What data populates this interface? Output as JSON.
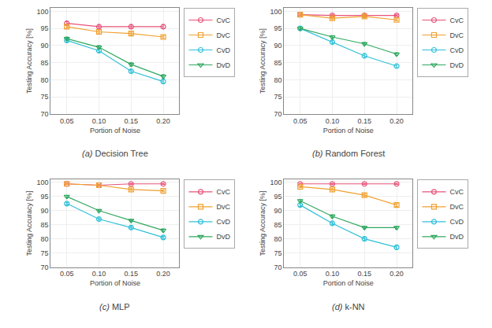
{
  "chart_data": [
    {
      "type": "line",
      "title": "(a) Decision Tree",
      "xlabel": "Portion of Noise",
      "ylabel": "Testing Accuracy [%]",
      "x": [
        0.05,
        0.1,
        0.15,
        0.2
      ],
      "xlim": [
        0.025,
        0.225
      ],
      "xticks": [
        0.05,
        {
          "value": 0.1,
          "label": "0.10"
        },
        0.15,
        {
          "value": 0.2,
          "label": "0.20"
        }
      ],
      "ylim": [
        70,
        101
      ],
      "yticks": [
        70,
        75,
        80,
        85,
        90,
        95,
        100
      ],
      "grid": true,
      "legend": "upper right",
      "series": [
        {
          "name": "CvC",
          "color": "#e8527a",
          "marker": "circle",
          "values": [
            96.5,
            95.5,
            95.5,
            95.5
          ],
          "errors": [
            0.5,
            0.5,
            0.5,
            0.5
          ]
        },
        {
          "name": "DvC",
          "color": "#f0a030",
          "marker": "square",
          "values": [
            95.5,
            94.0,
            93.5,
            92.5
          ],
          "errors": [
            0.4,
            0.4,
            0.4,
            0.4
          ]
        },
        {
          "name": "CvD",
          "color": "#30c0d8",
          "marker": "circle",
          "values": [
            91.5,
            88.5,
            82.5,
            79.5
          ],
          "errors": [
            0.5,
            0.5,
            0.5,
            0.5
          ]
        },
        {
          "name": "DvD",
          "color": "#30a860",
          "marker": "triangle-down",
          "values": [
            92.0,
            89.5,
            84.5,
            81.0
          ],
          "errors": [
            0.5,
            0.5,
            0.5,
            0.5
          ]
        }
      ]
    },
    {
      "type": "line",
      "title": "(b) Random Forest",
      "xlabel": "Portion of Noise",
      "ylabel": "Testing Accuracy [%]",
      "x": [
        0.05,
        0.1,
        0.15,
        0.2
      ],
      "xlim": [
        0.025,
        0.225
      ],
      "xticks": [
        0.05,
        {
          "value": 0.1,
          "label": "0.10"
        },
        0.15,
        {
          "value": 0.2,
          "label": "0.20"
        }
      ],
      "ylim": [
        70,
        101
      ],
      "yticks": [
        70,
        75,
        80,
        85,
        90,
        95,
        100
      ],
      "grid": true,
      "legend": "upper right",
      "series": [
        {
          "name": "CvC",
          "color": "#e8527a",
          "marker": "circle",
          "values": [
            99.0,
            98.8,
            98.8,
            98.8
          ],
          "errors": [
            0.2,
            0.2,
            0.2,
            0.2
          ]
        },
        {
          "name": "DvC",
          "color": "#f0a030",
          "marker": "square",
          "values": [
            99.0,
            98.0,
            98.5,
            97.5
          ],
          "errors": [
            0.3,
            0.3,
            0.3,
            0.3
          ]
        },
        {
          "name": "CvD",
          "color": "#30c0d8",
          "marker": "circle",
          "values": [
            95.0,
            91.0,
            87.0,
            84.0
          ],
          "errors": [
            0.4,
            0.5,
            0.5,
            0.5
          ]
        },
        {
          "name": "DvD",
          "color": "#30a860",
          "marker": "triangle-down",
          "values": [
            95.0,
            92.5,
            90.5,
            87.5
          ],
          "errors": [
            0.4,
            0.4,
            0.4,
            0.4
          ]
        }
      ]
    },
    {
      "type": "line",
      "title": "(c) MLP",
      "xlabel": "Portion of Noise",
      "ylabel": "Testing Accuracy [%]",
      "x": [
        0.05,
        0.1,
        0.15,
        0.2
      ],
      "xlim": [
        0.025,
        0.225
      ],
      "xticks": [
        0.05,
        {
          "value": 0.1,
          "label": "0.10"
        },
        0.15,
        {
          "value": 0.2,
          "label": "0.20"
        }
      ],
      "ylim": [
        70,
        101
      ],
      "yticks": [
        70,
        75,
        80,
        85,
        90,
        95,
        100
      ],
      "grid": true,
      "legend": "upper right",
      "series": [
        {
          "name": "CvC",
          "color": "#e8527a",
          "marker": "circle",
          "values": [
            99.5,
            99.0,
            99.5,
            99.5
          ],
          "errors": [
            0.2,
            0.3,
            0.2,
            0.2
          ]
        },
        {
          "name": "DvC",
          "color": "#f0a030",
          "marker": "square",
          "values": [
            99.5,
            99.0,
            97.5,
            97.0
          ],
          "errors": [
            0.2,
            0.2,
            0.3,
            0.3
          ]
        },
        {
          "name": "CvD",
          "color": "#30c0d8",
          "marker": "circle",
          "values": [
            92.5,
            87.0,
            84.0,
            80.5
          ],
          "errors": [
            0.4,
            0.4,
            0.5,
            0.4
          ]
        },
        {
          "name": "DvD",
          "color": "#30a860",
          "marker": "triangle-down",
          "values": [
            95.0,
            90.0,
            86.5,
            83.0
          ],
          "errors": [
            0.4,
            0.4,
            0.4,
            0.5
          ]
        }
      ]
    },
    {
      "type": "line",
      "title": "(d) k-NN",
      "xlabel": "Portion of Noise",
      "ylabel": "Testing Accuracy [%]",
      "x": [
        0.05,
        0.1,
        0.15,
        0.2
      ],
      "xlim": [
        0.025,
        0.225
      ],
      "xticks": [
        0.05,
        {
          "value": 0.1,
          "label": "0.10"
        },
        0.15,
        {
          "value": 0.2,
          "label": "0.20"
        }
      ],
      "ylim": [
        70,
        101
      ],
      "yticks": [
        70,
        75,
        80,
        85,
        90,
        95,
        100
      ],
      "grid": true,
      "legend": "upper right",
      "series": [
        {
          "name": "CvC",
          "color": "#e8527a",
          "marker": "circle",
          "values": [
            99.5,
            99.5,
            99.5,
            99.5
          ],
          "errors": [
            0.2,
            0.2,
            0.2,
            0.2
          ]
        },
        {
          "name": "DvC",
          "color": "#f0a030",
          "marker": "square",
          "values": [
            98.5,
            97.5,
            95.5,
            92.0
          ],
          "errors": [
            0.3,
            0.3,
            0.4,
            0.5
          ]
        },
        {
          "name": "CvD",
          "color": "#30c0d8",
          "marker": "circle",
          "values": [
            92.0,
            85.5,
            80.0,
            77.0
          ],
          "errors": [
            0.5,
            0.5,
            0.6,
            0.6
          ]
        },
        {
          "name": "DvD",
          "color": "#30a860",
          "marker": "triangle-down",
          "values": [
            93.5,
            88.0,
            84.0,
            84.0
          ],
          "errors": [
            0.4,
            0.5,
            0.5,
            0.5
          ]
        }
      ]
    }
  ]
}
